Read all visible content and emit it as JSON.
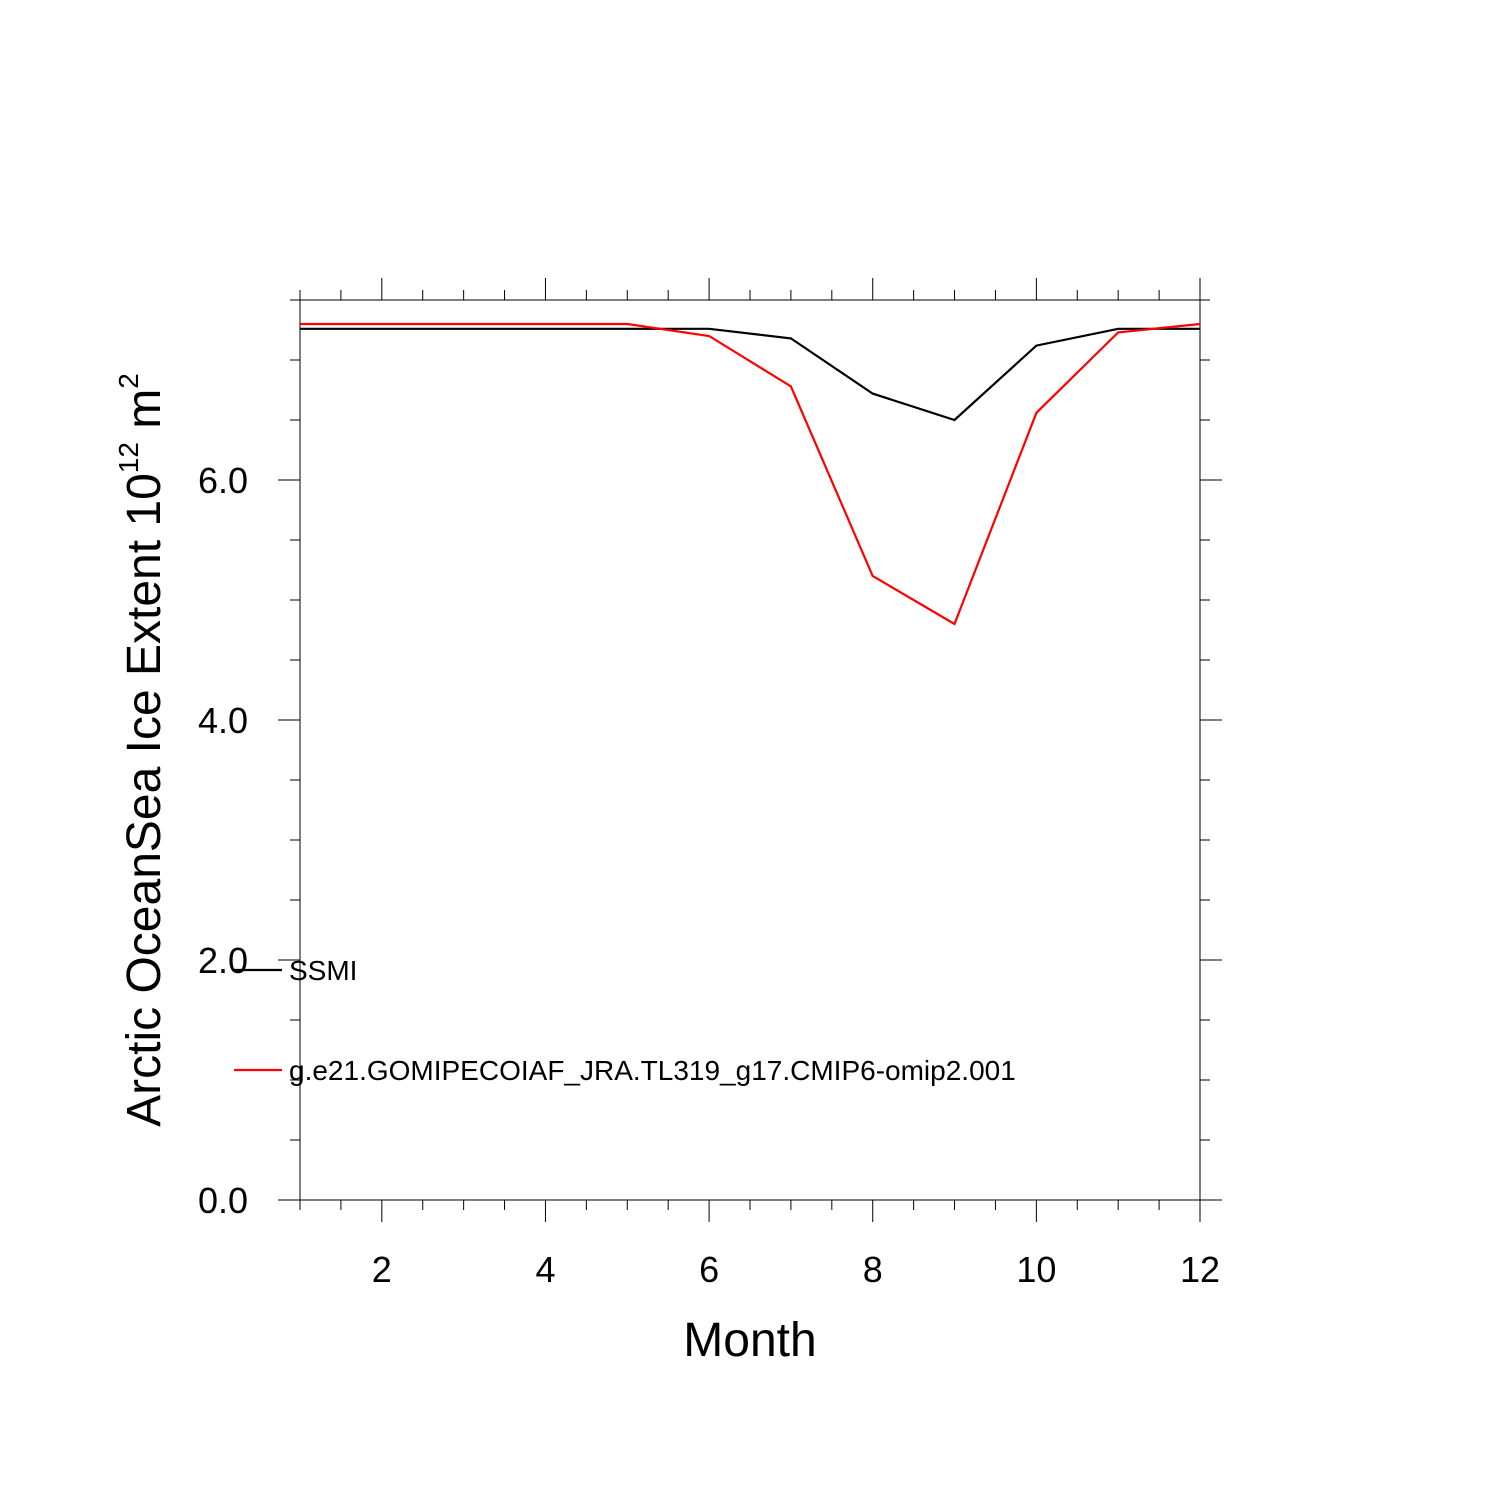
{
  "chart_data": {
    "type": "line",
    "title": "",
    "xlabel": "Month",
    "ylabel": "Arctic OceanSea Ice Extent 10",
    "ylabel_exponent": "12",
    "ylabel_unit": " m",
    "ylabel_unit_exponent": "2",
    "xlim": [
      1,
      12
    ],
    "ylim": [
      0,
      7.5
    ],
    "x_ticks": [
      2,
      4,
      6,
      8,
      10,
      12
    ],
    "x_tick_labels": [
      "2",
      "4",
      "6",
      "8",
      "10",
      "12"
    ],
    "y_ticks": [
      0,
      2,
      4,
      6
    ],
    "y_tick_labels": [
      "0.0",
      "2.0",
      "4.0",
      "6.0"
    ],
    "grid": false,
    "legend_position": "lower-left",
    "x": [
      1,
      2,
      3,
      4,
      5,
      6,
      7,
      8,
      9,
      10,
      11,
      12
    ],
    "series": [
      {
        "name": "SSMI",
        "color": "#000000",
        "values": [
          7.26,
          7.26,
          7.26,
          7.26,
          7.26,
          7.26,
          7.18,
          6.72,
          6.5,
          7.12,
          7.26,
          7.26
        ]
      },
      {
        "name": "g.e21.GOMIPECOIAF_JRA.TL319_g17.CMIP6-omip2.001",
        "color": "#ff0000",
        "values": [
          7.3,
          7.3,
          7.3,
          7.3,
          7.3,
          7.2,
          6.78,
          5.2,
          4.8,
          6.56,
          7.23,
          7.3
        ]
      }
    ]
  }
}
